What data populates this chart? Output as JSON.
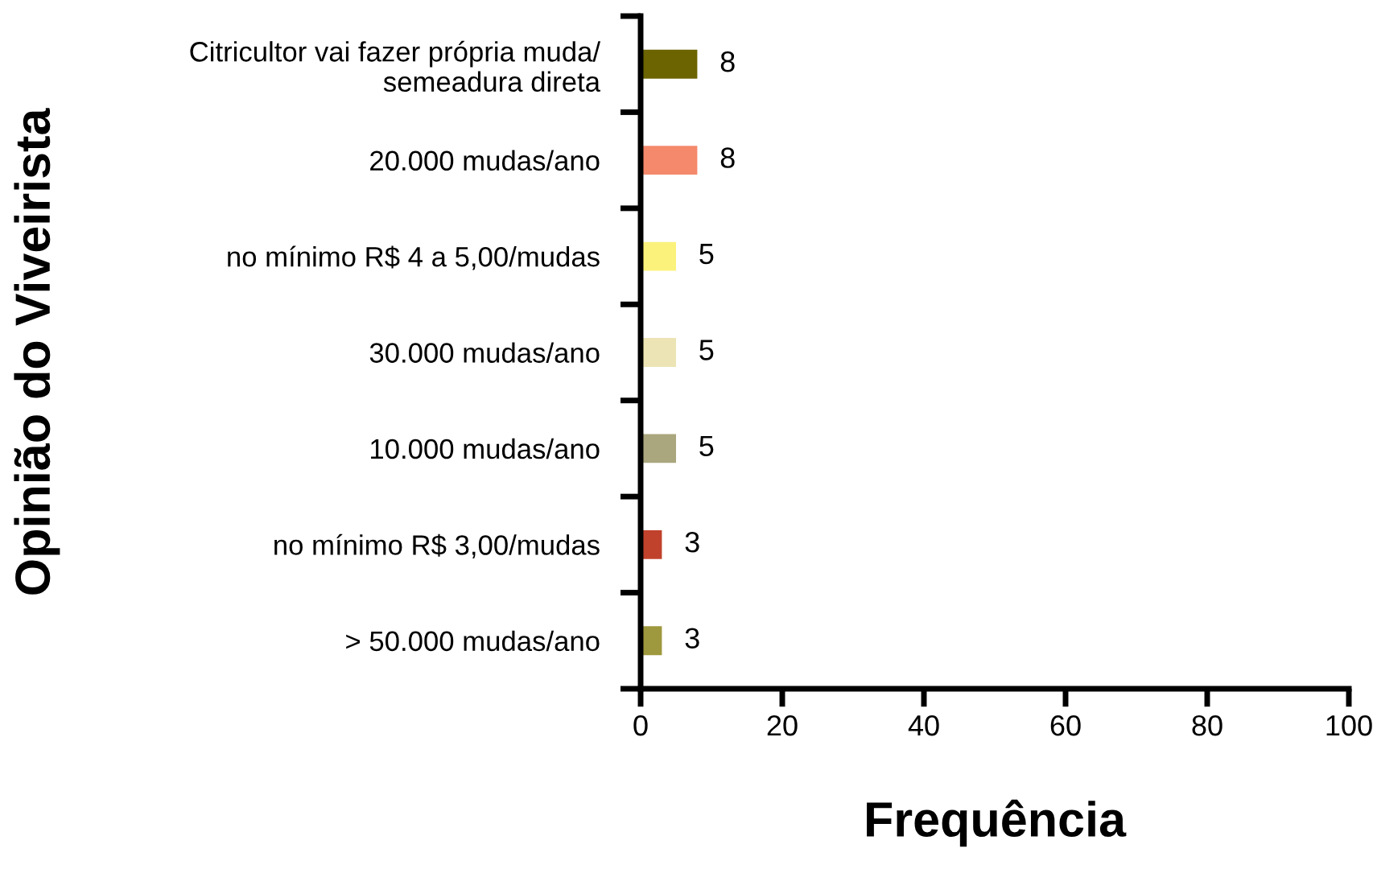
{
  "chart_data": {
    "type": "bar",
    "orientation": "horizontal",
    "ylabel": "Opinião do Viveirista",
    "xlabel": "Frequência",
    "categories": [
      "Citricultor vai fazer própria muda/\nsemeadura direta",
      "20.000 mudas/ano",
      "no mínimo R$ 4 a 5,00/mudas",
      "30.000 mudas/ano",
      "10.000 mudas/ano",
      "no mínimo R$ 3,00/mudas",
      "> 50.000 mudas/ano"
    ],
    "values": [
      8,
      8,
      5,
      5,
      5,
      3,
      3
    ],
    "colors": [
      "#6b6400",
      "#f4896b",
      "#fbf27c",
      "#ece4b4",
      "#aaa67e",
      "#c0422c",
      "#9e983e"
    ],
    "xlim": [
      0,
      100
    ],
    "xticks": [
      0,
      20,
      40,
      60,
      80,
      100
    ],
    "data_labels": true,
    "grid": false
  }
}
